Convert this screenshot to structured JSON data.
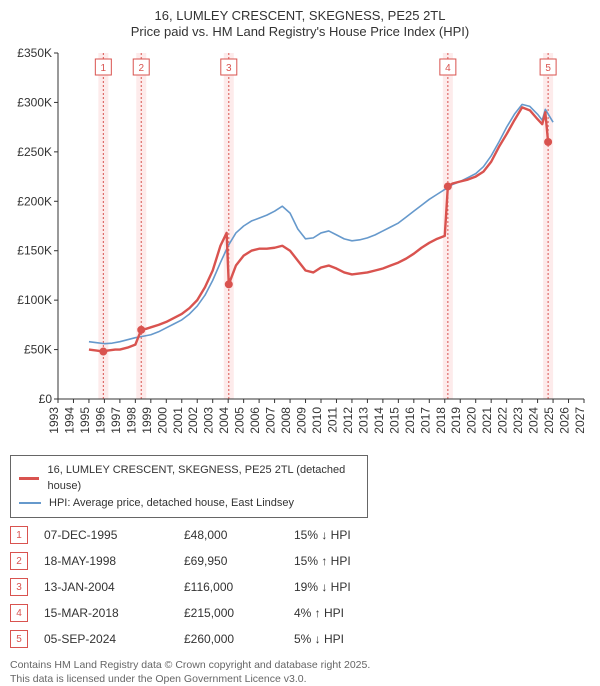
{
  "title_line1": "16, LUMLEY CRESCENT, SKEGNESS, PE25 2TL",
  "title_line2": "Price paid vs. HM Land Registry's House Price Index (HPI)",
  "chart": {
    "type": "line",
    "background_color": "#ffffff",
    "xlim": [
      1993,
      2027
    ],
    "ylim": [
      0,
      350000
    ],
    "ytick_step": 50000,
    "yticks": [
      "£0",
      "£50K",
      "£100K",
      "£150K",
      "£200K",
      "£250K",
      "£300K",
      "£350K"
    ],
    "xticks": [
      1993,
      1994,
      1995,
      1996,
      1997,
      1998,
      1999,
      2000,
      2001,
      2002,
      2003,
      2004,
      2005,
      2006,
      2007,
      2008,
      2009,
      2010,
      2011,
      2012,
      2013,
      2014,
      2015,
      2016,
      2017,
      2018,
      2019,
      2020,
      2021,
      2022,
      2023,
      2024,
      2025,
      2026,
      2027
    ],
    "axis_color": "#333333",
    "ytick_fontsize": 12,
    "xtick_fontsize": 12,
    "xtick_rotation": -90,
    "transaction_band_color": "#fdebeb",
    "transaction_line_color": "#d9534f",
    "transaction_line_dash": "2 2",
    "marker_box_fill": "#ffffff",
    "marker_box_stroke": "#d9534f",
    "marker_text_color": "#d9534f",
    "marker_fontsize": 10
  },
  "series": {
    "red": {
      "label": "16, LUMLEY CRESCENT, SKEGNESS, PE25 2TL (detached house)",
      "color": "#d9534f",
      "width": 2.4,
      "points": [
        [
          1995.0,
          50000
        ],
        [
          1995.5,
          49000
        ],
        [
          1995.93,
          48000
        ],
        [
          1996.2,
          49000
        ],
        [
          1996.7,
          50000
        ],
        [
          1997.0,
          50000
        ],
        [
          1997.5,
          52000
        ],
        [
          1998.0,
          55000
        ],
        [
          1998.38,
          69950
        ],
        [
          1998.7,
          71000
        ],
        [
          1999.0,
          72500
        ],
        [
          1999.5,
          75000
        ],
        [
          2000.0,
          78000
        ],
        [
          2000.5,
          82000
        ],
        [
          2001.0,
          86000
        ],
        [
          2001.5,
          92000
        ],
        [
          2002.0,
          100000
        ],
        [
          2002.5,
          113000
        ],
        [
          2003.0,
          130000
        ],
        [
          2003.5,
          155000
        ],
        [
          2003.9,
          168000
        ],
        [
          2004.04,
          116000
        ],
        [
          2004.5,
          135000
        ],
        [
          2005.0,
          145000
        ],
        [
          2005.5,
          150000
        ],
        [
          2006.0,
          152000
        ],
        [
          2006.5,
          152000
        ],
        [
          2007.0,
          153000
        ],
        [
          2007.5,
          155000
        ],
        [
          2008.0,
          150000
        ],
        [
          2008.5,
          140000
        ],
        [
          2009.0,
          130000
        ],
        [
          2009.5,
          128000
        ],
        [
          2010.0,
          133000
        ],
        [
          2010.5,
          135000
        ],
        [
          2011.0,
          132000
        ],
        [
          2011.5,
          128000
        ],
        [
          2012.0,
          126000
        ],
        [
          2012.5,
          127000
        ],
        [
          2013.0,
          128000
        ],
        [
          2013.5,
          130000
        ],
        [
          2014.0,
          132000
        ],
        [
          2014.5,
          135000
        ],
        [
          2015.0,
          138000
        ],
        [
          2015.5,
          142000
        ],
        [
          2016.0,
          147000
        ],
        [
          2016.5,
          153000
        ],
        [
          2017.0,
          158000
        ],
        [
          2017.5,
          162000
        ],
        [
          2018.0,
          165000
        ],
        [
          2018.2,
          215000
        ],
        [
          2018.5,
          218000
        ],
        [
          2019.0,
          220000
        ],
        [
          2019.5,
          222000
        ],
        [
          2020.0,
          225000
        ],
        [
          2020.5,
          230000
        ],
        [
          2021.0,
          240000
        ],
        [
          2021.5,
          255000
        ],
        [
          2022.0,
          268000
        ],
        [
          2022.5,
          282000
        ],
        [
          2023.0,
          295000
        ],
        [
          2023.5,
          292000
        ],
        [
          2024.0,
          283000
        ],
        [
          2024.3,
          278000
        ],
        [
          2024.5,
          290000
        ],
        [
          2024.68,
          260000
        ]
      ],
      "dots": [
        [
          1995.93,
          48000
        ],
        [
          1998.38,
          69950
        ],
        [
          2004.04,
          116000
        ],
        [
          2018.2,
          215000
        ],
        [
          2024.68,
          260000
        ]
      ]
    },
    "blue": {
      "label": "HPI: Average price, detached house, East Lindsey",
      "color": "#6699cc",
      "width": 1.6,
      "points": [
        [
          1995.0,
          58000
        ],
        [
          1995.5,
          57000
        ],
        [
          1996.0,
          56000
        ],
        [
          1996.5,
          56500
        ],
        [
          1997.0,
          58000
        ],
        [
          1997.5,
          60000
        ],
        [
          1998.0,
          62000
        ],
        [
          1998.5,
          63500
        ],
        [
          1999.0,
          65000
        ],
        [
          1999.5,
          68000
        ],
        [
          2000.0,
          72000
        ],
        [
          2000.5,
          76000
        ],
        [
          2001.0,
          80000
        ],
        [
          2001.5,
          86000
        ],
        [
          2002.0,
          94000
        ],
        [
          2002.5,
          105000
        ],
        [
          2003.0,
          120000
        ],
        [
          2003.5,
          138000
        ],
        [
          2004.0,
          155000
        ],
        [
          2004.5,
          168000
        ],
        [
          2005.0,
          175000
        ],
        [
          2005.5,
          180000
        ],
        [
          2006.0,
          183000
        ],
        [
          2006.5,
          186000
        ],
        [
          2007.0,
          190000
        ],
        [
          2007.5,
          195000
        ],
        [
          2008.0,
          188000
        ],
        [
          2008.5,
          172000
        ],
        [
          2009.0,
          162000
        ],
        [
          2009.5,
          163000
        ],
        [
          2010.0,
          168000
        ],
        [
          2010.5,
          170000
        ],
        [
          2011.0,
          166000
        ],
        [
          2011.5,
          162000
        ],
        [
          2012.0,
          160000
        ],
        [
          2012.5,
          161000
        ],
        [
          2013.0,
          163000
        ],
        [
          2013.5,
          166000
        ],
        [
          2014.0,
          170000
        ],
        [
          2014.5,
          174000
        ],
        [
          2015.0,
          178000
        ],
        [
          2015.5,
          184000
        ],
        [
          2016.0,
          190000
        ],
        [
          2016.5,
          196000
        ],
        [
          2017.0,
          202000
        ],
        [
          2017.5,
          207000
        ],
        [
          2018.0,
          212000
        ],
        [
          2018.5,
          217000
        ],
        [
          2019.0,
          220000
        ],
        [
          2019.5,
          224000
        ],
        [
          2020.0,
          228000
        ],
        [
          2020.5,
          235000
        ],
        [
          2021.0,
          246000
        ],
        [
          2021.5,
          260000
        ],
        [
          2022.0,
          275000
        ],
        [
          2022.5,
          288000
        ],
        [
          2023.0,
          298000
        ],
        [
          2023.5,
          296000
        ],
        [
          2024.0,
          288000
        ],
        [
          2024.3,
          282000
        ],
        [
          2024.5,
          293000
        ],
        [
          2025.0,
          280000
        ]
      ]
    }
  },
  "transactions": [
    {
      "n": "1",
      "year": 1995.93,
      "date": "07-DEC-1995",
      "price": "£48,000",
      "delta": "15% ↓ HPI"
    },
    {
      "n": "2",
      "year": 1998.38,
      "date": "18-MAY-1998",
      "price": "£69,950",
      "delta": "15% ↑ HPI"
    },
    {
      "n": "3",
      "year": 2004.04,
      "date": "13-JAN-2004",
      "price": "£116,000",
      "delta": "19% ↓ HPI"
    },
    {
      "n": "4",
      "year": 2018.2,
      "date": "15-MAR-2018",
      "price": "£215,000",
      "delta": "4% ↑ HPI"
    },
    {
      "n": "5",
      "year": 2024.68,
      "date": "05-SEP-2024",
      "price": "£260,000",
      "delta": "5% ↓ HPI"
    }
  ],
  "legend": {
    "border_color": "#666666",
    "fontsize": 11
  },
  "footer_line1": "Contains HM Land Registry data © Crown copyright and database right 2025.",
  "footer_line2": "This data is licensed under the Open Government Licence v3.0."
}
